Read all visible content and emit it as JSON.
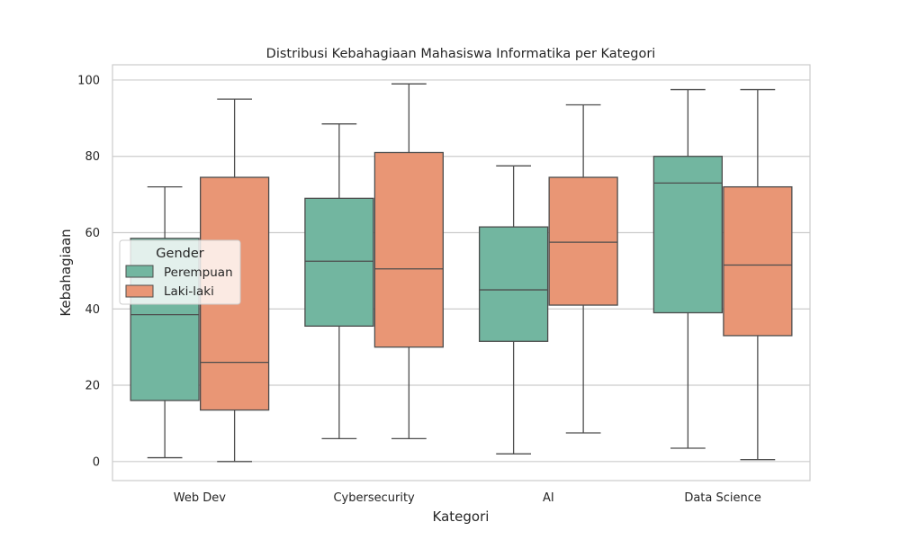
{
  "chart_data": {
    "type": "box",
    "title": "Distribusi Kebahagiaan Mahasiswa Informatika per Kategori",
    "xlabel": "Kategori",
    "ylabel": "Kebahagiaan",
    "categories": [
      "Web Dev",
      "Cybersecurity",
      "AI",
      "Data Science"
    ],
    "ylim": [
      -5,
      104
    ],
    "yticks": [
      "0",
      "20",
      "40",
      "60",
      "80",
      "100"
    ],
    "grid": "horizontal",
    "legend": {
      "title": "Gender",
      "position": "center-left"
    },
    "series": [
      {
        "name": "Perempuan",
        "color": "#72b6a0",
        "boxes": [
          {
            "min": 1,
            "q1": 16,
            "median": 38.5,
            "q3": 58.5,
            "max": 72
          },
          {
            "min": 6,
            "q1": 35.5,
            "median": 52.5,
            "q3": 69,
            "max": 88.5
          },
          {
            "min": 2,
            "q1": 31.5,
            "median": 45,
            "q3": 61.5,
            "max": 77.5
          },
          {
            "min": 3.5,
            "q1": 39,
            "median": 73,
            "q3": 80,
            "max": 97.5
          }
        ]
      },
      {
        "name": "Laki-laki",
        "color": "#e99675",
        "boxes": [
          {
            "min": 0,
            "q1": 13.5,
            "median": 26,
            "q3": 74.5,
            "max": 95
          },
          {
            "min": 6,
            "q1": 30,
            "median": 50.5,
            "q3": 81,
            "max": 99
          },
          {
            "min": 7.5,
            "q1": 41,
            "median": 57.5,
            "q3": 74.5,
            "max": 93.5
          },
          {
            "min": 0.5,
            "q1": 33,
            "median": 51.5,
            "q3": 72,
            "max": 97.5
          }
        ]
      }
    ]
  }
}
